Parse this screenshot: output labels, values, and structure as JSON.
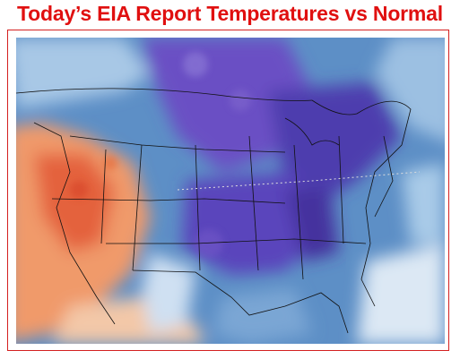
{
  "title": "Today’s EIA Report Temperatures vs Normal"
}
